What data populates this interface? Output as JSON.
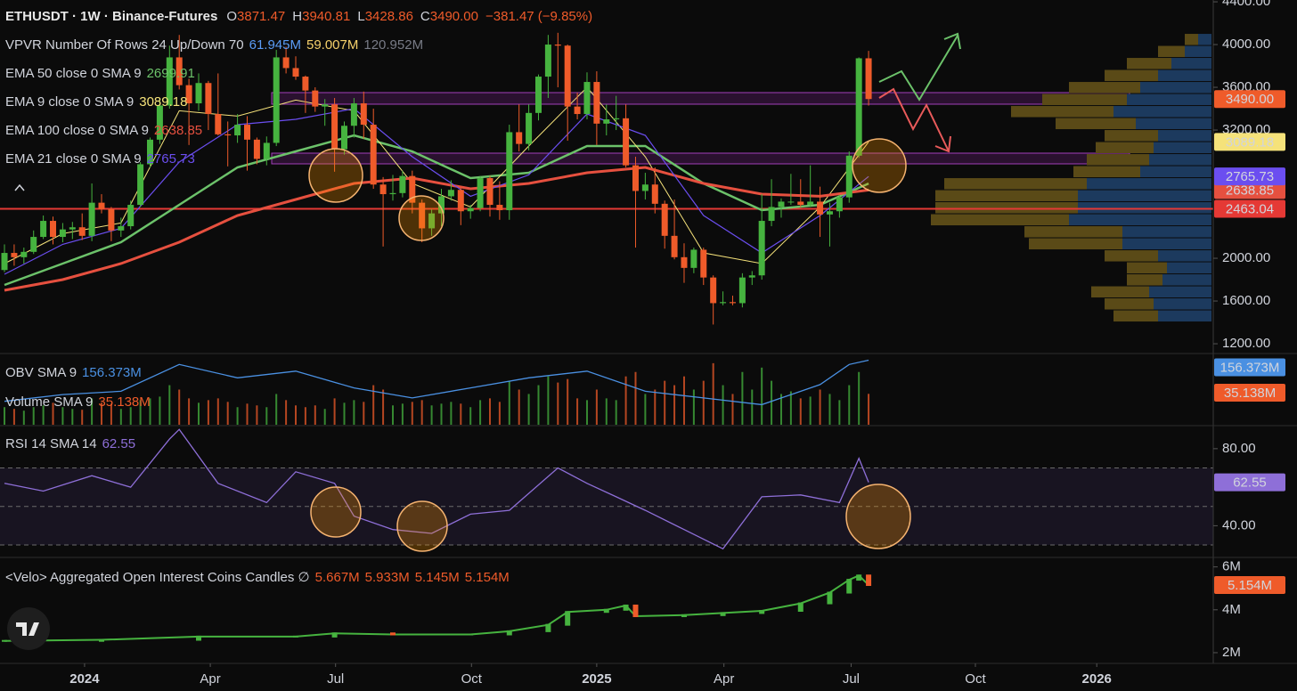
{
  "chart_data": [
    {
      "type": "candlestick",
      "title": "ETHUSDT · 1W · Binance-Futures",
      "readout_keys": [
        "O",
        "H",
        "L",
        "C"
      ],
      "close_label": "3490.00",
      "change": "−381.47 (−9.85%)",
      "up_color": "#46b33f",
      "down_color": "#ef5b2a",
      "xlim": [
        -0.46,
        124.5
      ],
      "xticks": [
        {
          "value": 8.25,
          "label": "2024"
        },
        {
          "value": 21.2,
          "label": "Apr"
        },
        {
          "value": 34.1,
          "label": "Jul"
        },
        {
          "value": 48.1,
          "label": "Oct"
        },
        {
          "value": 61,
          "label": "2025"
        },
        {
          "value": 74.1,
          "label": "Apr"
        },
        {
          "value": 87.2,
          "label": "Jul"
        },
        {
          "value": 100,
          "label": "Oct"
        },
        {
          "value": 112.5,
          "label": "2026"
        }
      ],
      "ylim": [
        1117,
        4417
      ],
      "yticks": [
        {
          "value": 4400,
          "label": "4400.00"
        },
        {
          "value": 4000,
          "label": "4000.00"
        },
        {
          "value": 3600,
          "label": "3600.00"
        },
        {
          "value": 3200,
          "label": "3200.00"
        },
        {
          "value": 2000,
          "label": "2000.00"
        },
        {
          "value": 1600,
          "label": "1600.00"
        },
        {
          "value": 1200,
          "label": "1200.00"
        }
      ],
      "ohlc": [
        [
          1890,
          2130,
          1870,
          2050
        ],
        [
          2050,
          2130,
          1930,
          2010
        ],
        [
          2010,
          2100,
          1950,
          2060
        ],
        [
          2060,
          2260,
          2040,
          2200
        ],
        [
          2200,
          2400,
          2180,
          2350
        ],
        [
          2350,
          2390,
          2130,
          2200
        ],
        [
          2200,
          2330,
          2150,
          2270
        ],
        [
          2270,
          2340,
          2180,
          2290
        ],
        [
          2290,
          2420,
          2170,
          2210
        ],
        [
          2210,
          2700,
          2160,
          2520
        ],
        [
          2520,
          2600,
          2420,
          2460
        ],
        [
          2460,
          2480,
          2160,
          2260
        ],
        [
          2260,
          2380,
          2200,
          2300
        ],
        [
          2300,
          2540,
          2270,
          2500
        ],
        [
          2500,
          2900,
          2480,
          2880
        ],
        [
          2880,
          3130,
          2850,
          3110
        ],
        [
          3110,
          3500,
          3070,
          3430
        ],
        [
          3430,
          3990,
          3400,
          3880
        ],
        [
          3880,
          4090,
          3580,
          3620
        ],
        [
          3620,
          3680,
          3060,
          3450
        ],
        [
          3450,
          3730,
          3380,
          3640
        ],
        [
          3640,
          3660,
          3200,
          3350
        ],
        [
          3350,
          3730,
          3150,
          3160
        ],
        [
          3160,
          3280,
          2860,
          3150
        ],
        [
          3150,
          3350,
          3080,
          3250
        ],
        [
          3250,
          3330,
          2820,
          3110
        ],
        [
          3110,
          3130,
          2880,
          2930
        ],
        [
          2930,
          3140,
          2870,
          3080
        ],
        [
          3080,
          3950,
          3050,
          3880
        ],
        [
          3880,
          3980,
          3730,
          3780
        ],
        [
          3780,
          3890,
          3670,
          3700
        ],
        [
          3700,
          3710,
          3360,
          3570
        ],
        [
          3570,
          3600,
          3370,
          3420
        ],
        [
          3420,
          3490,
          3240,
          3440
        ],
        [
          3440,
          3500,
          2810,
          3020
        ],
        [
          3020,
          3280,
          2970,
          3240
        ],
        [
          3240,
          3500,
          3130,
          3450
        ],
        [
          3450,
          3560,
          3120,
          3250
        ],
        [
          3250,
          3400,
          2650,
          2690
        ],
        [
          2690,
          2760,
          2110,
          2600
        ],
        [
          2600,
          2780,
          2540,
          2610
        ],
        [
          2610,
          2820,
          2570,
          2770
        ],
        [
          2770,
          2820,
          2420,
          2520
        ],
        [
          2520,
          2550,
          2150,
          2280
        ],
        [
          2280,
          2460,
          2210,
          2420
        ],
        [
          2420,
          2650,
          2300,
          2580
        ],
        [
          2580,
          2730,
          2540,
          2640
        ],
        [
          2640,
          2670,
          2310,
          2440
        ],
        [
          2440,
          2500,
          2370,
          2470
        ],
        [
          2470,
          2770,
          2440,
          2750
        ],
        [
          2750,
          2770,
          2390,
          2500
        ],
        [
          2500,
          2720,
          2360,
          2450
        ],
        [
          2450,
          3250,
          2360,
          3180
        ],
        [
          3180,
          3440,
          3000,
          3070
        ],
        [
          3070,
          3440,
          3010,
          3360
        ],
        [
          3360,
          3720,
          3290,
          3700
        ],
        [
          3700,
          4090,
          3500,
          4000
        ],
        [
          4000,
          4110,
          3600,
          3990
        ],
        [
          3990,
          4000,
          3100,
          3420
        ],
        [
          3420,
          3550,
          3300,
          3350
        ],
        [
          3350,
          3740,
          3300,
          3650
        ],
        [
          3650,
          3750,
          3060,
          3260
        ],
        [
          3260,
          3440,
          3150,
          3300
        ],
        [
          3300,
          3520,
          3200,
          3310
        ],
        [
          3310,
          3440,
          2850,
          2870
        ],
        [
          2870,
          2950,
          2100,
          2630
        ],
        [
          2630,
          2800,
          2550,
          2690
        ],
        [
          2690,
          2850,
          2420,
          2510
        ],
        [
          2510,
          2540,
          2090,
          2210
        ],
        [
          2210,
          2550,
          1990,
          2010
        ],
        [
          2010,
          2140,
          1770,
          1910
        ],
        [
          1910,
          2100,
          1860,
          2080
        ],
        [
          2080,
          2100,
          1750,
          1820
        ],
        [
          1820,
          1840,
          1380,
          1580
        ],
        [
          1580,
          1690,
          1560,
          1590
        ],
        [
          1590,
          1650,
          1560,
          1580
        ],
        [
          1580,
          1860,
          1540,
          1820
        ],
        [
          1820,
          1880,
          1750,
          1840
        ],
        [
          1840,
          2600,
          1800,
          2350
        ],
        [
          2350,
          2740,
          2300,
          2480
        ],
        [
          2480,
          2560,
          2380,
          2530
        ],
        [
          2530,
          2790,
          2500,
          2530
        ],
        [
          2530,
          2740,
          2480,
          2500
        ],
        [
          2500,
          2870,
          2480,
          2530
        ],
        [
          2530,
          2670,
          2200,
          2410
        ],
        [
          2410,
          2520,
          2110,
          2440
        ],
        [
          2440,
          2590,
          2380,
          2570
        ],
        [
          2570,
          3000,
          2520,
          2960
        ],
        [
          2960,
          3880,
          2940,
          3871.47
        ],
        [
          3871.47,
          3940.81,
          3428.86,
          3490
        ]
      ],
      "vpvr": {
        "label": "VPVR Number Of Rows 24 Up/Down 70",
        "readout": [
          {
            "text": "61.945M",
            "color": "#5b9cf6"
          },
          {
            "text": "59.007M",
            "color": "#f5d06b"
          },
          {
            "text": "120.952M",
            "color": "#787b86"
          }
        ],
        "price_range": [
          1400,
          4100
        ],
        "up_color": "#1c3a5e",
        "down_color": "#5a4a17",
        "up": [
          60,
          65,
          70,
          55,
          50,
          60,
          100,
          100,
          160,
          150,
          150,
          140,
          80,
          70,
          65,
          60,
          85,
          110,
          95,
          80,
          60,
          45,
          30,
          15
        ],
        "down": [
          50,
          55,
          65,
          40,
          45,
          60,
          105,
          110,
          155,
          160,
          160,
          160,
          75,
          70,
          65,
          60,
          90,
          115,
          95,
          80,
          60,
          50,
          30,
          15
        ]
      },
      "indicators": [
        {
          "name": "EMA 50 close 0 SMA 9",
          "color": "#6cc26a",
          "width": 2.5,
          "x": [
            0,
            6,
            12,
            18,
            24,
            30,
            36,
            42,
            48,
            54,
            60,
            66,
            72,
            78,
            84,
            89
          ],
          "values": [
            1750,
            1950,
            2150,
            2500,
            2850,
            3000,
            3150,
            3000,
            2750,
            2800,
            3050,
            3050,
            2700,
            2450,
            2500,
            2699.91
          ]
        },
        {
          "name": "EMA 9 close 0 SMA 9",
          "color": "#f5e27a",
          "width": 1,
          "x": [
            0,
            6,
            12,
            18,
            24,
            30,
            36,
            42,
            48,
            54,
            60,
            66,
            72,
            78,
            84,
            89
          ],
          "values": [
            1950,
            2230,
            2330,
            3380,
            3330,
            3480,
            3380,
            2700,
            2480,
            3050,
            3600,
            2950,
            2050,
            1950,
            2480,
            3089.18
          ]
        },
        {
          "name": "EMA 100 close 0 SMA 9",
          "color": "#e6503f",
          "width": 3,
          "x": [
            0,
            6,
            12,
            18,
            24,
            30,
            36,
            42,
            48,
            54,
            60,
            66,
            72,
            78,
            84,
            89
          ],
          "values": [
            1700,
            1800,
            1950,
            2150,
            2400,
            2550,
            2700,
            2750,
            2650,
            2700,
            2800,
            2850,
            2700,
            2600,
            2580,
            2638.85
          ]
        },
        {
          "name": "EMA 21 close 0 SMA 9",
          "color": "#6b4ef0",
          "width": 1.2,
          "x": [
            0,
            6,
            12,
            18,
            24,
            30,
            36,
            42,
            48,
            54,
            60,
            66,
            72,
            78,
            84,
            89
          ],
          "values": [
            1850,
            2130,
            2280,
            2900,
            3250,
            3300,
            3400,
            2950,
            2580,
            2780,
            3350,
            3150,
            2400,
            2050,
            2400,
            2765.73
          ]
        }
      ],
      "hline": {
        "value": 2463.04,
        "color": "#e53935"
      }
    },
    {
      "type": "obv_volume",
      "obv": {
        "name": "OBV SMA 9",
        "color": "#4a90e2",
        "x": [
          0,
          6,
          12,
          18,
          24,
          30,
          36,
          42,
          48,
          54,
          60,
          66,
          72,
          78,
          84,
          87,
          89
        ],
        "values": [
          95,
          105,
          110,
          150,
          130,
          140,
          115,
          100,
          115,
          130,
          140,
          110,
          100,
          90,
          120,
          150,
          156.373
        ],
        "value_label": "156.373M",
        "ylim": [
          60,
          165
        ]
      },
      "volume": {
        "name": "Volume SMA 9",
        "color": "#ef5b2a",
        "values": [
          20,
          18,
          16,
          20,
          22,
          25,
          20,
          18,
          17,
          30,
          25,
          24,
          18,
          20,
          28,
          30,
          32,
          45,
          40,
          30,
          25,
          28,
          30,
          26,
          20,
          24,
          22,
          20,
          35,
          28,
          22,
          20,
          22,
          18,
          30,
          25,
          28,
          26,
          45,
          40,
          22,
          24,
          26,
          28,
          22,
          24,
          26,
          24,
          20,
          28,
          30,
          26,
          50,
          40,
          35,
          45,
          55,
          48,
          52,
          30,
          28,
          40,
          30,
          28,
          55,
          60,
          35,
          40,
          50,
          45,
          55,
          40,
          50,
          70,
          45,
          35,
          60,
          40,
          65,
          50,
          35,
          38,
          30,
          32,
          40,
          35,
          28,
          45,
          60,
          35.138
        ],
        "value_label": "35.138M",
        "ylim": [
          0,
          80
        ]
      }
    },
    {
      "type": "rsi",
      "name": "RSI 14 SMA 14",
      "color": "#8e6fd8",
      "x": [
        0,
        4,
        9,
        13,
        17,
        18,
        22,
        27,
        30,
        34,
        36,
        40,
        44,
        48,
        52,
        57,
        60,
        63,
        66,
        70,
        74,
        78,
        82,
        86,
        88,
        89
      ],
      "values": [
        62,
        58,
        66,
        60,
        85,
        90,
        62,
        52,
        68,
        62,
        45,
        38,
        36,
        46,
        48,
        70,
        62,
        55,
        48,
        38,
        28,
        55,
        56,
        52,
        75,
        62.55
      ],
      "ylim": [
        24,
        91.5
      ],
      "yticks": [
        {
          "value": 80,
          "label": "80.00"
        },
        {
          "value": 40,
          "label": "40.00"
        }
      ],
      "levels": [
        70,
        50,
        30
      ]
    },
    {
      "type": "oi",
      "name": "<Velo> Aggregated Open Interest Coins Candles ∅",
      "readout": [
        "5.667M",
        "5.933M",
        "5.145M",
        "5.154M"
      ],
      "color": "#ef5b2a",
      "x": [
        0,
        10,
        20,
        30,
        34,
        40,
        48,
        52,
        56,
        58,
        62,
        64,
        65,
        70,
        74,
        78,
        82,
        85,
        87,
        88,
        89
      ],
      "values": [
        2.55,
        2.6,
        2.75,
        2.75,
        2.9,
        2.85,
        2.85,
        3.0,
        3.3,
        3.9,
        4.0,
        4.2,
        3.7,
        3.75,
        3.85,
        3.95,
        4.3,
        4.8,
        5.4,
        5.6,
        5.154
      ],
      "ylim": [
        1.5,
        6.4
      ],
      "yticks": [
        {
          "value": 6,
          "label": "6M"
        },
        {
          "value": 4,
          "label": "4M"
        },
        {
          "value": 2,
          "label": "2M"
        }
      ]
    }
  ]
}
